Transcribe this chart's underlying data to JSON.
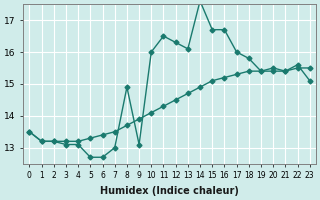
{
  "xlabel": "Humidex (Indice chaleur)",
  "ylabel": "",
  "background_color": "#d0ecea",
  "line_color": "#1a7a6e",
  "grid_color": "#ffffff",
  "x_data": [
    0,
    1,
    2,
    3,
    4,
    5,
    6,
    7,
    8,
    9,
    10,
    11,
    12,
    13,
    14,
    15,
    16,
    17,
    18,
    19,
    20,
    21,
    22,
    23
  ],
  "curve1_y": [
    13.5,
    13.2,
    13.2,
    13.1,
    13.1,
    12.7,
    12.7,
    13.0,
    14.9,
    13.1,
    16.0,
    16.5,
    16.3,
    16.1,
    17.6,
    16.7,
    16.7,
    16.0,
    15.8,
    15.4,
    15.5,
    15.4,
    15.6,
    15.1
  ],
  "curve2_y": [
    13.5,
    13.2,
    13.2,
    13.2,
    13.2,
    13.3,
    13.4,
    13.5,
    13.7,
    13.9,
    14.1,
    14.3,
    14.5,
    14.7,
    14.9,
    15.1,
    15.2,
    15.3,
    15.4,
    15.4,
    15.4,
    15.4,
    15.5,
    15.5
  ],
  "ylim": [
    12.5,
    17.5
  ],
  "yticks": [
    13,
    14,
    15,
    16,
    17
  ],
  "xlim": [
    -0.5,
    23.5
  ]
}
